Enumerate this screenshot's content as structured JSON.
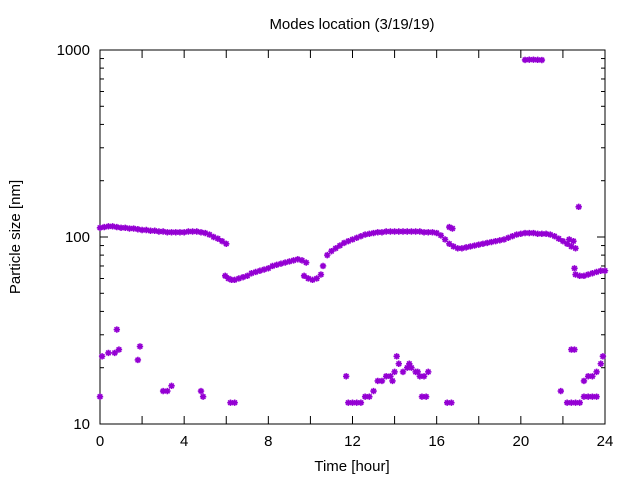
{
  "chart_data": {
    "type": "scatter",
    "title": "Modes location (3/19/19)",
    "xlabel": "Time [hour]",
    "ylabel": "Particle size [nm]",
    "xlim": [
      0,
      24
    ],
    "ylim": [
      10,
      1000
    ],
    "y_scale": "log",
    "x_ticks": [
      "0",
      "4",
      "8",
      "12",
      "16",
      "20",
      "24"
    ],
    "y_ticks": [
      "10",
      "100",
      "1000"
    ],
    "marker_color": "#9400d3",
    "marker": "star",
    "grid": false,
    "legend": "none",
    "series": [
      {
        "points": [
          [
            0.0,
            112
          ],
          [
            0.2,
            113
          ],
          [
            0.4,
            114
          ],
          [
            0.6,
            114
          ],
          [
            0.8,
            113
          ],
          [
            1.0,
            112
          ],
          [
            1.2,
            112
          ],
          [
            1.4,
            111
          ],
          [
            1.6,
            111
          ],
          [
            1.8,
            110
          ],
          [
            2.0,
            109
          ],
          [
            2.2,
            109
          ],
          [
            2.4,
            108
          ],
          [
            2.6,
            108
          ],
          [
            2.8,
            107
          ],
          [
            3.0,
            107
          ],
          [
            3.2,
            106
          ],
          [
            3.4,
            106
          ],
          [
            3.6,
            106
          ],
          [
            3.8,
            106
          ],
          [
            4.0,
            106
          ],
          [
            4.2,
            107
          ],
          [
            4.4,
            107
          ],
          [
            4.6,
            107
          ],
          [
            4.8,
            106
          ],
          [
            5.0,
            105
          ],
          [
            5.2,
            103
          ],
          [
            5.4,
            100
          ],
          [
            5.6,
            98
          ],
          [
            5.8,
            95
          ],
          [
            6.0,
            92
          ],
          [
            5.95,
            62
          ],
          [
            6.1,
            60
          ],
          [
            6.25,
            59
          ],
          [
            6.4,
            59
          ],
          [
            6.6,
            60
          ],
          [
            6.8,
            61
          ],
          [
            7.0,
            62
          ],
          [
            7.2,
            64
          ],
          [
            7.4,
            65
          ],
          [
            7.6,
            66
          ],
          [
            7.8,
            67
          ],
          [
            8.0,
            68
          ],
          [
            8.2,
            70
          ],
          [
            8.4,
            71
          ],
          [
            8.6,
            72
          ],
          [
            8.8,
            73
          ],
          [
            9.0,
            74
          ],
          [
            9.2,
            75
          ],
          [
            9.4,
            76
          ],
          [
            9.6,
            75
          ],
          [
            9.8,
            73
          ],
          [
            9.7,
            62
          ],
          [
            9.9,
            60
          ],
          [
            10.1,
            59
          ],
          [
            10.3,
            60
          ],
          [
            10.5,
            63
          ],
          [
            10.6,
            70
          ],
          [
            10.8,
            80
          ],
          [
            11.0,
            84
          ],
          [
            11.2,
            87
          ],
          [
            11.4,
            90
          ],
          [
            11.6,
            93
          ],
          [
            11.8,
            95
          ],
          [
            12.0,
            97
          ],
          [
            12.2,
            99
          ],
          [
            12.4,
            101
          ],
          [
            12.6,
            103
          ],
          [
            12.8,
            104
          ],
          [
            13.0,
            105
          ],
          [
            13.2,
            106
          ],
          [
            13.4,
            106
          ],
          [
            13.6,
            107
          ],
          [
            13.8,
            107
          ],
          [
            14.0,
            107
          ],
          [
            14.2,
            107
          ],
          [
            14.4,
            107
          ],
          [
            14.6,
            107
          ],
          [
            14.8,
            107
          ],
          [
            15.0,
            107
          ],
          [
            15.2,
            107
          ],
          [
            15.4,
            106
          ],
          [
            15.6,
            106
          ],
          [
            15.8,
            106
          ],
          [
            16.0,
            105
          ],
          [
            16.2,
            102
          ],
          [
            16.4,
            97
          ],
          [
            16.6,
            92
          ],
          [
            16.8,
            89
          ],
          [
            17.0,
            87
          ],
          [
            17.2,
            87
          ],
          [
            17.4,
            88
          ],
          [
            17.6,
            89
          ],
          [
            17.8,
            90
          ],
          [
            18.0,
            91
          ],
          [
            18.2,
            92
          ],
          [
            18.4,
            93
          ],
          [
            18.6,
            94
          ],
          [
            18.8,
            95
          ],
          [
            19.0,
            96
          ],
          [
            19.2,
            97
          ],
          [
            19.4,
            99
          ],
          [
            19.6,
            101
          ],
          [
            19.8,
            103
          ],
          [
            20.0,
            104
          ],
          [
            20.2,
            105
          ],
          [
            20.4,
            105
          ],
          [
            20.6,
            105
          ],
          [
            20.8,
            104
          ],
          [
            21.0,
            104
          ],
          [
            21.2,
            104
          ],
          [
            21.4,
            103
          ],
          [
            21.6,
            101
          ],
          [
            21.8,
            98
          ],
          [
            22.0,
            95
          ],
          [
            22.2,
            92
          ],
          [
            22.4,
            89
          ],
          [
            22.6,
            87
          ],
          [
            16.6,
            113
          ],
          [
            16.75,
            111
          ],
          [
            22.6,
            63
          ],
          [
            22.8,
            62
          ],
          [
            23.0,
            62
          ],
          [
            23.2,
            63
          ],
          [
            23.4,
            64
          ],
          [
            23.6,
            65
          ],
          [
            23.8,
            66
          ],
          [
            24.0,
            66
          ],
          [
            22.3,
            97
          ],
          [
            22.5,
            95
          ],
          [
            22.75,
            145
          ],
          [
            22.55,
            68
          ],
          [
            20.2,
            885
          ],
          [
            20.4,
            888
          ],
          [
            20.6,
            888
          ],
          [
            20.8,
            886
          ],
          [
            21.0,
            884
          ],
          [
            0.0,
            14
          ],
          [
            0.1,
            23
          ],
          [
            0.4,
            24
          ],
          [
            0.7,
            24
          ],
          [
            0.8,
            32
          ],
          [
            0.9,
            25
          ],
          [
            1.8,
            22
          ],
          [
            1.9,
            26
          ],
          [
            3.0,
            15
          ],
          [
            3.2,
            15
          ],
          [
            3.4,
            16
          ],
          [
            4.8,
            15
          ],
          [
            4.9,
            14
          ],
          [
            6.2,
            13
          ],
          [
            6.4,
            13
          ],
          [
            11.7,
            18
          ],
          [
            11.8,
            13
          ],
          [
            12.0,
            13
          ],
          [
            12.2,
            13
          ],
          [
            12.4,
            13
          ],
          [
            12.6,
            14
          ],
          [
            12.8,
            14
          ],
          [
            13.0,
            15
          ],
          [
            13.2,
            17
          ],
          [
            13.4,
            17
          ],
          [
            13.6,
            18
          ],
          [
            13.8,
            18
          ],
          [
            13.9,
            17
          ],
          [
            14.0,
            19
          ],
          [
            14.1,
            23
          ],
          [
            14.2,
            21
          ],
          [
            14.4,
            19
          ],
          [
            14.6,
            20
          ],
          [
            14.7,
            21
          ],
          [
            14.8,
            20
          ],
          [
            15.0,
            19
          ],
          [
            15.1,
            19
          ],
          [
            15.2,
            18
          ],
          [
            15.3,
            14
          ],
          [
            15.4,
            18
          ],
          [
            15.5,
            14
          ],
          [
            15.6,
            19
          ],
          [
            16.5,
            13
          ],
          [
            16.7,
            13
          ],
          [
            21.9,
            15
          ],
          [
            22.2,
            13
          ],
          [
            22.4,
            13
          ],
          [
            22.6,
            13
          ],
          [
            22.8,
            13
          ],
          [
            23.0,
            14
          ],
          [
            23.2,
            14
          ],
          [
            23.4,
            14
          ],
          [
            23.6,
            14
          ],
          [
            22.4,
            25
          ],
          [
            22.55,
            25
          ],
          [
            23.0,
            17
          ],
          [
            23.2,
            18
          ],
          [
            23.4,
            18
          ],
          [
            23.6,
            19
          ],
          [
            23.8,
            21
          ],
          [
            23.9,
            23
          ]
        ]
      }
    ]
  }
}
